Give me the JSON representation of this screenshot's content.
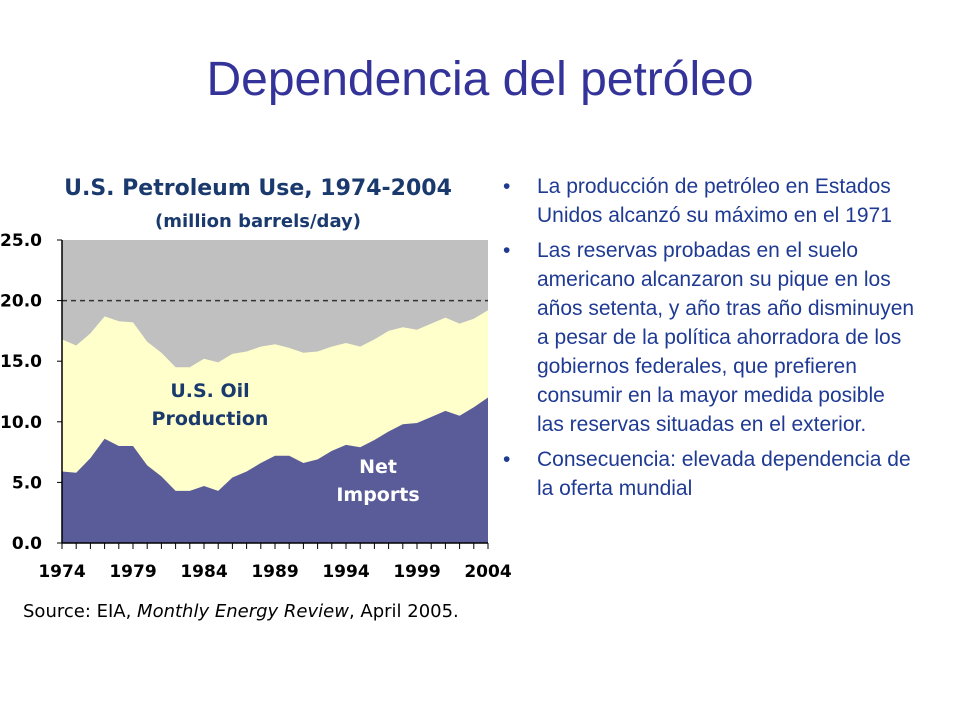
{
  "slide": {
    "title": "Dependencia del petróleo",
    "bullets": [
      "La producción de petróleo en Estados Unidos alcanzó su máximo en el 1971",
      "Las reservas probadas en el suelo americano alcanzaron su pique en los años setenta, y año tras año disminuyen a pesar de la política ahorradora de los gobiernos federales, que prefieren consumir en la mayor medida posible las reservas situadas en el exterior.",
      "Consecuencia: elevada dependencia de la oferta mundial"
    ],
    "bullet_marker": "•"
  },
  "chart_data": {
    "type": "area",
    "title": "U.S. Petroleum Use, 1974-2004",
    "subtitle": "(million barrels/day)",
    "source_prefix": "Source: EIA, ",
    "source_italic": "Monthly Energy Review",
    "source_suffix": ", April 2005.",
    "x": [
      1974,
      1975,
      1976,
      1977,
      1978,
      1979,
      1980,
      1981,
      1982,
      1983,
      1984,
      1985,
      1986,
      1987,
      1988,
      1989,
      1990,
      1991,
      1992,
      1993,
      1994,
      1995,
      1996,
      1997,
      1998,
      1999,
      2000,
      2001,
      2002,
      2003,
      2004
    ],
    "x_tick_labels": [
      "1974",
      "1979",
      "1984",
      "1989",
      "1994",
      "1999",
      "2004"
    ],
    "xlim": [
      1974,
      2004
    ],
    "ylim": [
      0,
      25
    ],
    "y_tick_labels": [
      "25.0",
      "20.0",
      "15.0",
      "10.0",
      "5.0",
      "0.0"
    ],
    "y_ticks": [
      25,
      20,
      15,
      10,
      5,
      0
    ],
    "reference_line": 20,
    "series": [
      {
        "name": "Net Imports",
        "color": "#5a5c99",
        "label_color": "#ffffff",
        "label_lines": [
          "Net",
          "Imports"
        ],
        "values": [
          5.9,
          5.8,
          7.0,
          8.6,
          8.0,
          8.0,
          6.4,
          5.5,
          4.3,
          4.3,
          4.7,
          4.3,
          5.4,
          5.9,
          6.6,
          7.2,
          7.2,
          6.6,
          6.9,
          7.6,
          8.1,
          7.9,
          8.5,
          9.2,
          9.8,
          9.9,
          10.4,
          10.9,
          10.5,
          11.2,
          12.0
        ]
      },
      {
        "name": "U.S. Oil Production",
        "color": "#ffffcc",
        "label_color": "#1a3a6e",
        "label_lines": [
          "U.S. Oil",
          "Production"
        ],
        "values": [
          10.9,
          10.5,
          10.3,
          10.1,
          10.3,
          10.2,
          10.2,
          10.2,
          10.2,
          10.2,
          10.5,
          10.6,
          10.2,
          9.9,
          9.6,
          9.2,
          8.9,
          9.1,
          8.9,
          8.6,
          8.4,
          8.3,
          8.3,
          8.3,
          8.0,
          7.7,
          7.7,
          7.7,
          7.6,
          7.3,
          7.2
        ]
      }
    ],
    "total_color": "#c0c0c0",
    "grid": false
  }
}
